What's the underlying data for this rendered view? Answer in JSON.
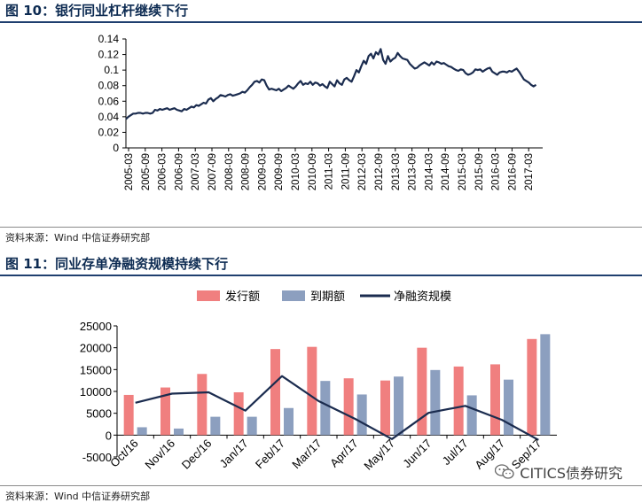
{
  "figures": [
    {
      "title": "图 10：银行同业杠杆继续下行",
      "source": "资料来源：Wind   中信证券研究部"
    },
    {
      "title": "图 11：同业存单净融资规模持续下行",
      "source": "资料来源：Wind   中信证券研究部"
    }
  ],
  "watermark": "CITICS债券研究",
  "colors": {
    "navy": "#1b2c4f",
    "issue": "#f07f7f",
    "mature": "#8c9fbf",
    "title": "#0d2b52"
  },
  "chart_data": [
    {
      "type": "line",
      "title": "银行同业杠杆",
      "ylim": [
        0,
        0.14
      ],
      "yticks": [
        "0.14",
        "0.12",
        "0.1",
        "0.08",
        "0.06",
        "0.04",
        "0.02",
        "0"
      ],
      "xticks": [
        "2005-03",
        "2005-09",
        "2006-03",
        "2006-09",
        "2007-03",
        "2007-09",
        "2008-03",
        "2008-09",
        "2009-03",
        "2009-09",
        "2010-03",
        "2010-09",
        "2011-03",
        "2011-09",
        "2012-03",
        "2012-09",
        "2013-03",
        "2013-09",
        "2014-03",
        "2014-09",
        "2015-03",
        "2015-09",
        "2016-03",
        "2016-09",
        "2017-03"
      ],
      "x_start": 2005.0,
      "x_step_months": 1,
      "values": [
        0.037,
        0.04,
        0.042,
        0.044,
        0.044,
        0.045,
        0.045,
        0.044,
        0.045,
        0.045,
        0.044,
        0.045,
        0.049,
        0.048,
        0.05,
        0.049,
        0.05,
        0.051,
        0.049,
        0.05,
        0.051,
        0.049,
        0.048,
        0.047,
        0.05,
        0.049,
        0.051,
        0.053,
        0.052,
        0.055,
        0.054,
        0.056,
        0.058,
        0.057,
        0.062,
        0.064,
        0.06,
        0.063,
        0.065,
        0.068,
        0.067,
        0.066,
        0.068,
        0.069,
        0.067,
        0.068,
        0.069,
        0.07,
        0.072,
        0.071,
        0.074,
        0.078,
        0.081,
        0.085,
        0.086,
        0.084,
        0.088,
        0.087,
        0.08,
        0.075,
        0.076,
        0.075,
        0.074,
        0.076,
        0.073,
        0.075,
        0.077,
        0.08,
        0.078,
        0.076,
        0.079,
        0.083,
        0.086,
        0.081,
        0.083,
        0.082,
        0.085,
        0.081,
        0.084,
        0.083,
        0.08,
        0.082,
        0.079,
        0.077,
        0.085,
        0.082,
        0.079,
        0.087,
        0.083,
        0.081,
        0.088,
        0.09,
        0.087,
        0.085,
        0.092,
        0.1,
        0.097,
        0.105,
        0.112,
        0.108,
        0.118,
        0.121,
        0.115,
        0.123,
        0.12,
        0.127,
        0.113,
        0.108,
        0.118,
        0.111,
        0.114,
        0.116,
        0.122,
        0.118,
        0.115,
        0.114,
        0.113,
        0.108,
        0.105,
        0.102,
        0.103,
        0.106,
        0.108,
        0.11,
        0.108,
        0.106,
        0.11,
        0.107,
        0.111,
        0.11,
        0.108,
        0.109,
        0.107,
        0.105,
        0.104,
        0.102,
        0.1,
        0.099,
        0.101,
        0.1,
        0.096,
        0.094,
        0.095,
        0.097,
        0.101,
        0.1,
        0.101,
        0.098,
        0.1,
        0.102,
        0.103,
        0.098,
        0.096,
        0.094,
        0.097,
        0.098,
        0.098,
        0.097,
        0.099,
        0.098,
        0.1,
        0.102,
        0.098,
        0.093,
        0.088,
        0.086,
        0.084,
        0.081,
        0.079,
        0.081
      ]
    },
    {
      "type": "bar+line",
      "legend": [
        "发行额",
        "到期额",
        "净融资规模"
      ],
      "categories": [
        "Oct/16",
        "Nov/16",
        "Dec/16",
        "Jan/17",
        "Feb/17",
        "Mar/17",
        "Apr/17",
        "May/17",
        "Jun/17",
        "Jul/17",
        "Aug/17",
        "Sep/17"
      ],
      "ylim": [
        -5000,
        25000
      ],
      "yticks": [
        "25000",
        "20000",
        "15000",
        "10000",
        "5000",
        "0",
        "-5000"
      ],
      "series": [
        {
          "name": "发行额",
          "type": "bar",
          "values": [
            9200,
            10900,
            14000,
            9800,
            19700,
            20200,
            13000,
            12500,
            20000,
            15700,
            16200,
            22000
          ]
        },
        {
          "name": "到期额",
          "type": "bar",
          "values": [
            1800,
            1500,
            4200,
            4200,
            6200,
            12400,
            9300,
            13400,
            14900,
            9100,
            12700,
            23100
          ]
        },
        {
          "name": "净融资规模",
          "type": "line",
          "values": [
            7400,
            9500,
            9800,
            5600,
            13500,
            7800,
            3700,
            -900,
            5100,
            6700,
            3500,
            -1100
          ]
        }
      ]
    }
  ]
}
